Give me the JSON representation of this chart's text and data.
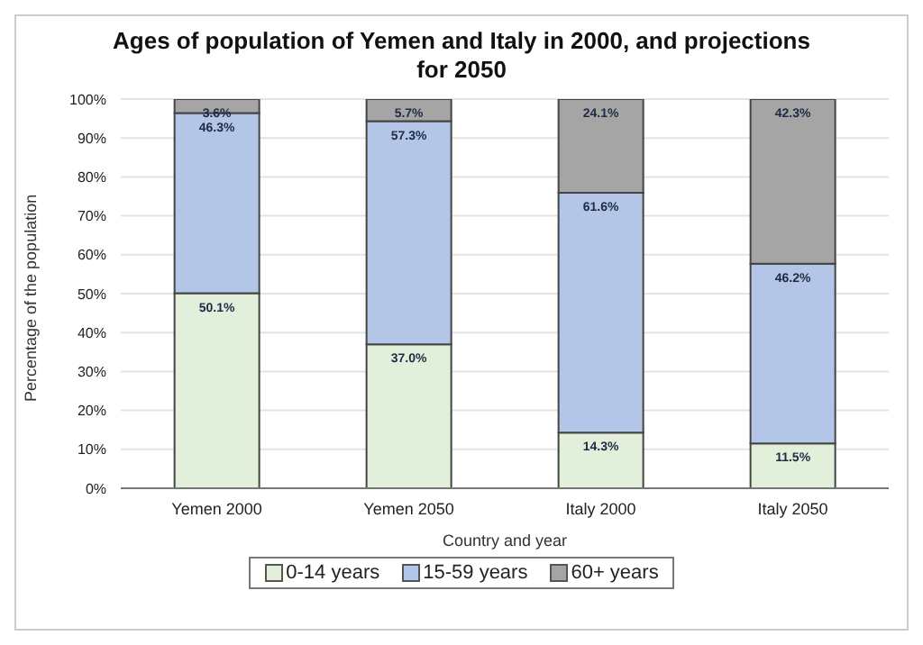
{
  "chart_data": {
    "type": "bar",
    "title": "Ages of population of Yemen and Italy in 2000, and projections for 2050",
    "xlabel": "Country and year",
    "ylabel": "Percentage of the population",
    "categories": [
      "Yemen 2000",
      "Yemen 2050",
      "Italy 2000",
      "Italy 2050"
    ],
    "stacked": true,
    "series": [
      {
        "name": "0-14 years",
        "color": "#e2efda",
        "values": [
          50.1,
          37.0,
          14.3,
          11.5
        ],
        "value_labels": [
          "50.1%",
          "37.0%",
          "14.3%",
          "11.5%"
        ]
      },
      {
        "name": "15-59 years",
        "color": "#b4c6e7",
        "values": [
          46.3,
          57.3,
          61.6,
          46.2
        ],
        "value_labels": [
          "46.3%",
          "57.3%",
          "61.6%",
          "46.2%"
        ]
      },
      {
        "name": "60+ years",
        "color": "#a5a5a5",
        "values": [
          3.6,
          5.7,
          24.1,
          42.3
        ],
        "value_labels": [
          "3.6%",
          "5.7%",
          "24.1%",
          "42.3%"
        ]
      }
    ],
    "ylim": [
      0,
      100
    ],
    "yticks": [
      {
        "value": 0,
        "label": "0%"
      },
      {
        "value": 10,
        "label": "10%"
      },
      {
        "value": 20,
        "label": "20%"
      },
      {
        "value": 30,
        "label": "30%"
      },
      {
        "value": 40,
        "label": "40%"
      },
      {
        "value": 50,
        "label": "50%"
      },
      {
        "value": 60,
        "label": "60%"
      },
      {
        "value": 70,
        "label": "70%"
      },
      {
        "value": 80,
        "label": "80%"
      },
      {
        "value": 90,
        "label": "90%"
      },
      {
        "value": 100,
        "label": "100%"
      }
    ],
    "grid": "y",
    "legend": "bottom"
  }
}
